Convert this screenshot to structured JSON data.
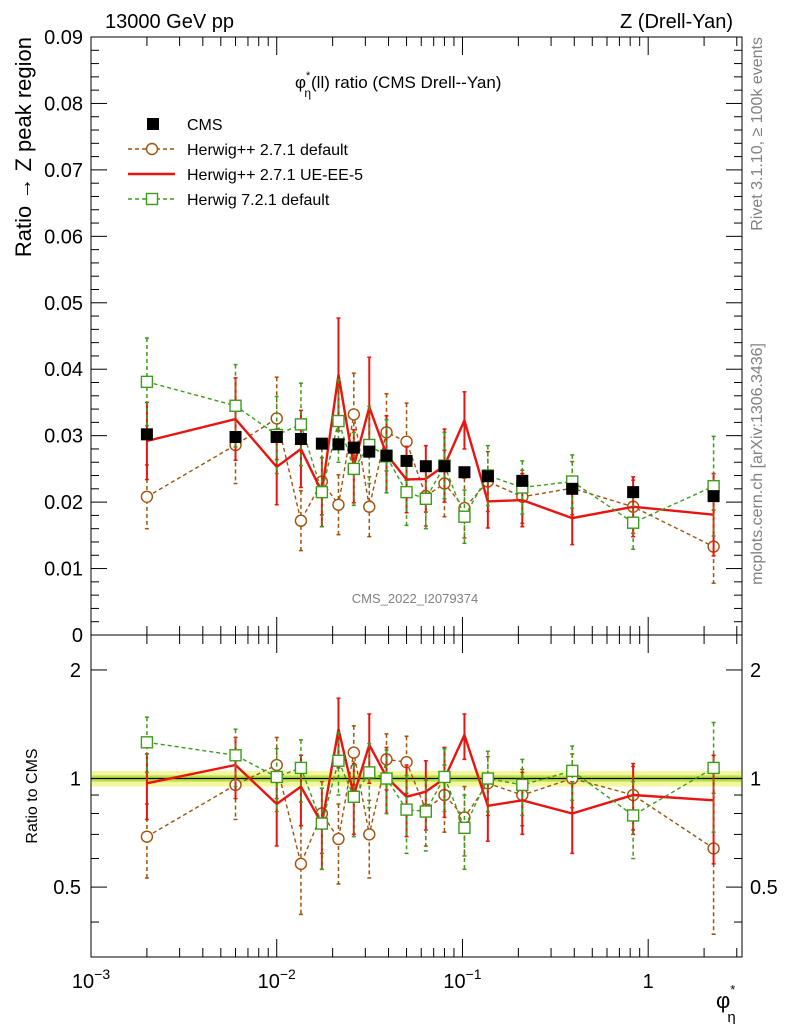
{
  "header": {
    "left": "13000 GeV pp",
    "right": "Z (Drell-Yan)"
  },
  "side": {
    "rivet": "Rivet 3.1.10, ≥ 100k events",
    "mcplots": "mcplots.cern.ch [arXiv:1306.3436]"
  },
  "watermark": "CMS_2022_I2079374",
  "colors": {
    "cms": "#000000",
    "herwigpp_default": "#a0520a",
    "herwigpp_ueee5": "#e8140f",
    "herwig7_default": "#3d9c1b",
    "band_inner": "#b8e04a",
    "band_outer": "#f4f7a0"
  },
  "chart_data": [
    {
      "type": "line",
      "title": "φ*η(ll) ratio (CMS Drell--Yan)",
      "title_parts": {
        "sym": "φ",
        "sup": "*",
        "sub": "η",
        "rest": "(ll) ratio (CMS Drell--Yan)"
      },
      "ylabel": "Ratio → Z peak region",
      "xscale": "log",
      "xlim": [
        0.001,
        3.2
      ],
      "ylim": [
        0,
        0.09
      ],
      "yticks": [
        "0",
        "0.01",
        "0.02",
        "0.03",
        "0.04",
        "0.05",
        "0.06",
        "0.07",
        "0.08",
        "0.09"
      ],
      "legend_position": "top-left",
      "x": [
        0.002,
        0.006,
        0.01,
        0.0135,
        0.0175,
        0.0215,
        0.026,
        0.0315,
        0.039,
        0.05,
        0.0635,
        0.08,
        0.1025,
        0.137,
        0.21,
        0.39,
        0.83,
        2.25
      ],
      "series": [
        {
          "name": "CMS",
          "style": "marker-square",
          "values": [
            0.0302,
            0.0298,
            0.0298,
            0.0295,
            0.0288,
            0.0287,
            0.0282,
            0.0276,
            0.027,
            0.0262,
            0.0254,
            0.0254,
            0.0245,
            0.0239,
            0.0232,
            0.022,
            0.0215,
            0.0209
          ]
        },
        {
          "name": "Herwig++ 2.7.1 default",
          "style": "dashed-circle",
          "values": [
            0.0208,
            0.0286,
            0.0326,
            0.0172,
            0.0231,
            0.0196,
            0.0332,
            0.0193,
            0.0305,
            0.0291,
            0.0209,
            0.0228,
            0.0191,
            0.0231,
            0.0208,
            0.0221,
            0.0193,
            0.0133
          ],
          "err": [
            0.0048,
            0.0058,
            0.0062,
            0.0045,
            0.005,
            0.0045,
            0.0062,
            0.0045,
            0.0058,
            0.0058,
            0.0045,
            0.005,
            0.0045,
            0.0045,
            0.004,
            0.004,
            0.004,
            0.0055
          ]
        },
        {
          "name": "Herwig++ 2.7.1 UE-EE-5",
          "style": "solid-line",
          "values": [
            0.0292,
            0.0325,
            0.0253,
            0.028,
            0.0215,
            0.0392,
            0.0254,
            0.0343,
            0.0272,
            0.0234,
            0.0235,
            0.0255,
            0.0323,
            0.0201,
            0.0203,
            0.0176,
            0.0193,
            0.0181
          ],
          "err": [
            0.0058,
            0.0062,
            0.0057,
            0.0058,
            0.0052,
            0.0085,
            0.0055,
            0.0075,
            0.0058,
            0.005,
            0.005,
            0.0055,
            0.0043,
            0.004,
            0.004,
            0.004,
            0.0045,
            0.0062
          ]
        },
        {
          "name": "Herwig 7.2.1 default",
          "style": "dashed-square",
          "values": [
            0.0381,
            0.0345,
            0.0301,
            0.0317,
            0.0215,
            0.0322,
            0.025,
            0.0286,
            0.0269,
            0.0215,
            0.0205,
            0.0255,
            0.0178,
            0.024,
            0.0222,
            0.0231,
            0.0169,
            0.0224
          ],
          "err": [
            0.0066,
            0.0062,
            0.0058,
            0.0062,
            0.0052,
            0.0062,
            0.0055,
            0.0058,
            0.0055,
            0.005,
            0.0045,
            0.005,
            0.004,
            0.0045,
            0.004,
            0.004,
            0.004,
            0.0075
          ]
        }
      ]
    },
    {
      "type": "line",
      "ylabel": "Ratio to CMS",
      "xlabel": "φ*η",
      "xlabel_parts": {
        "sym": "φ",
        "sup": "*",
        "sub": "η"
      },
      "xscale": "log",
      "xlim": [
        0.001,
        3.2
      ],
      "ylim": [
        0.32,
        2.5
      ],
      "yticks": [
        "0.5",
        "1",
        "2"
      ],
      "xticks": [
        {
          "base": "10",
          "exp": "−3"
        },
        {
          "base": "10",
          "exp": "−2"
        },
        {
          "base": "10",
          "exp": "−1"
        },
        {
          "base": "1",
          "exp": ""
        }
      ],
      "reference_band": {
        "center": 1.0,
        "inner": 0.02,
        "outer": 0.05
      },
      "x": [
        0.002,
        0.006,
        0.01,
        0.0135,
        0.0175,
        0.0215,
        0.026,
        0.0315,
        0.039,
        0.05,
        0.0635,
        0.08,
        0.1025,
        0.137,
        0.21,
        0.39,
        0.83,
        2.25
      ],
      "series": [
        {
          "name": "Herwig++ 2.7.1 default",
          "values": [
            0.69,
            0.96,
            1.09,
            0.58,
            0.8,
            0.68,
            1.18,
            0.7,
            1.13,
            1.11,
            0.82,
            0.9,
            0.78,
            0.97,
            0.9,
            1.0,
            0.9,
            0.64
          ],
          "err": [
            0.16,
            0.19,
            0.21,
            0.16,
            0.18,
            0.17,
            0.22,
            0.17,
            0.2,
            0.2,
            0.17,
            0.19,
            0.17,
            0.18,
            0.16,
            0.17,
            0.18,
            0.27
          ]
        },
        {
          "name": "Herwig++ 2.7.1 UE-EE-5",
          "values": [
            0.97,
            1.09,
            0.85,
            0.95,
            0.75,
            1.37,
            0.9,
            1.24,
            1.01,
            0.89,
            0.92,
            1.0,
            1.32,
            0.84,
            0.87,
            0.8,
            0.9,
            0.87
          ],
          "err": [
            0.2,
            0.21,
            0.2,
            0.21,
            0.19,
            0.3,
            0.2,
            0.27,
            0.21,
            0.2,
            0.2,
            0.22,
            0.19,
            0.17,
            0.17,
            0.18,
            0.2,
            0.29
          ]
        },
        {
          "name": "Herwig 7.2.1 default",
          "values": [
            1.26,
            1.16,
            1.01,
            1.07,
            0.75,
            1.12,
            0.89,
            1.04,
            1.0,
            0.82,
            0.81,
            1.01,
            0.73,
            1.0,
            0.96,
            1.05,
            0.79,
            1.07
          ],
          "err": [
            0.22,
            0.21,
            0.2,
            0.21,
            0.19,
            0.22,
            0.2,
            0.21,
            0.2,
            0.2,
            0.18,
            0.2,
            0.17,
            0.19,
            0.17,
            0.18,
            0.19,
            0.36
          ]
        }
      ]
    }
  ]
}
